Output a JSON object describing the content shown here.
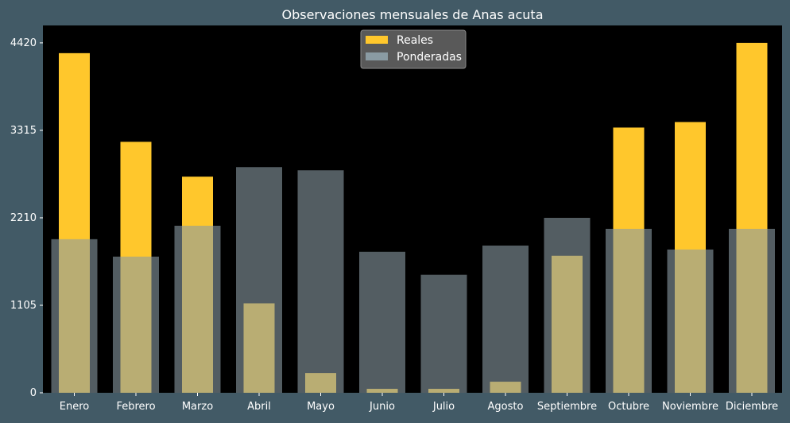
{
  "chart_data": {
    "type": "bar",
    "title": "Observaciones mensuales de Anas acuta",
    "xlabel": "",
    "ylabel": "",
    "categories": [
      "Enero",
      "Febrero",
      "Marzo",
      "Abril",
      "Mayo",
      "Junio",
      "Julio",
      "Agosto",
      "Septiembre",
      "Octubre",
      "Noviembre",
      "Diciembre"
    ],
    "series": [
      {
        "name": "Reales",
        "color": "#ffc72c",
        "values": [
          4290,
          3170,
          2730,
          1130,
          250,
          50,
          50,
          140,
          1730,
          3350,
          3420,
          4420
        ]
      },
      {
        "name": "Ponderadas",
        "color": "#8a9ba3",
        "values": [
          1940,
          1720,
          2110,
          2850,
          2810,
          1780,
          1490,
          1860,
          2210,
          2070,
          1810,
          2070
        ]
      }
    ],
    "yticks": [
      "0",
      "1105",
      "2210",
      "3315",
      "4420"
    ],
    "ylim": [
      0,
      4640
    ],
    "legend_position": "top-center",
    "colors": {
      "background": "#425a66",
      "plot_background": "#000000",
      "text": "#ffffff",
      "legend_background": "#595959",
      "legend_border": "#8c8c8c"
    }
  }
}
